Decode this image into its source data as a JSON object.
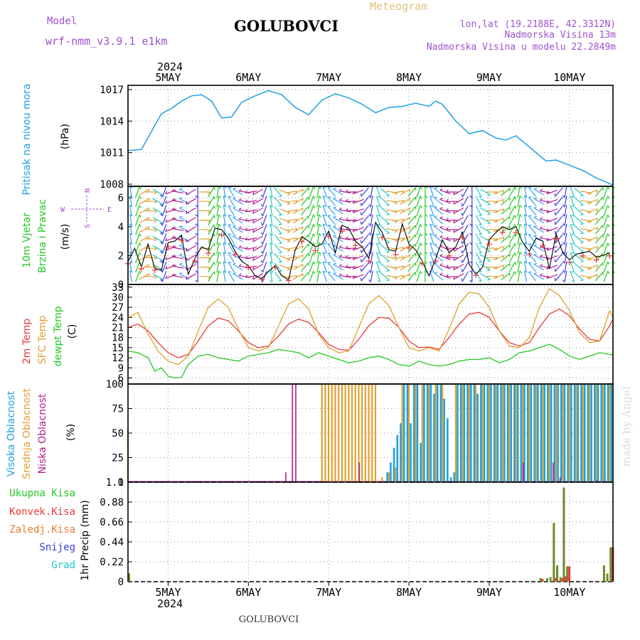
{
  "header": {
    "model_label": "Model",
    "model_name": "wrf-nmm_v3.9.1 e1km",
    "station": "GOLUBOVCI",
    "meteogram_label": "Meteogram",
    "lonlat": "lon,lat (19.2188E, 42.3312N)",
    "elevation": "Nadmorska Visina 13m",
    "model_elevation": "Nadmorska Visina u modelu 22.2849m",
    "footer_station": "GOLUBOVCI",
    "watermark": "made by Angel"
  },
  "time_axis": {
    "top_year": "2024",
    "bottom_year": "2024",
    "days": [
      "5MAY",
      "6MAY",
      "7MAY",
      "8MAY",
      "9MAY",
      "10MAY"
    ],
    "start_hour_offset": -12,
    "end_hour_offset": 133
  },
  "colors": {
    "pressure": "#1fa0e0",
    "t2m": "#e83a3a",
    "tsfc": "#e0a030",
    "dewpt": "#22c822",
    "high_cloud": "#1fa0e0",
    "mid_cloud": "#e0a030",
    "low_cloud": "#b0208c",
    "total_precip": "#22c822",
    "conv_precip": "#e83a3a",
    "frz_precip": "#f07830",
    "snow": "#3c3ce0",
    "grad": "#20c8c8",
    "label_purple": "#a050d0",
    "label_orange": "#e0c080"
  },
  "chart_data": [
    {
      "type": "line",
      "name": "pressure",
      "ylabel": [
        "Pritisak na nivou mora",
        "(hPa)"
      ],
      "yticks": [
        1008,
        1011,
        1014,
        1017
      ],
      "ylim": [
        1007.8,
        1017.4
      ],
      "grid": true,
      "series": [
        {
          "name": "Pritisak na nivou mora",
          "x": [
            -12,
            -8,
            -5,
            -2,
            1,
            4,
            7,
            10,
            13,
            16,
            19,
            22,
            26,
            30,
            34,
            38,
            42,
            46,
            50,
            54,
            58,
            62,
            66,
            70,
            74,
            78,
            80,
            82,
            86,
            90,
            94,
            98,
            101,
            104,
            107,
            110,
            113,
            116,
            120,
            124,
            128,
            131,
            133
          ],
          "values": [
            1011.2,
            1011.3,
            1013.0,
            1014.7,
            1015.2,
            1015.9,
            1016.4,
            1016.5,
            1015.9,
            1014.3,
            1014.4,
            1015.8,
            1016.4,
            1016.9,
            1016.5,
            1015.3,
            1014.6,
            1016.0,
            1016.6,
            1016.2,
            1015.6,
            1014.8,
            1015.3,
            1015.4,
            1015.7,
            1015.4,
            1015.9,
            1015.6,
            1014.0,
            1012.8,
            1013.1,
            1012.4,
            1012.2,
            1012.6,
            1011.8,
            1011.0,
            1010.2,
            1010.3,
            1009.8,
            1009.3,
            1008.6,
            1008.2,
            1007.9
          ]
        }
      ]
    },
    {
      "type": "line",
      "name": "wind",
      "ylabel": [
        "10m Vjetar",
        "Brzina i Pravac",
        "(m/s)"
      ],
      "compass": {
        "n": "N",
        "s": "S",
        "w": "W",
        "e": "E"
      },
      "yticks": [
        0,
        2,
        4,
        6
      ],
      "ylim": [
        0,
        6.8
      ],
      "grid": true,
      "series": [
        {
          "name": "10m Vjetar brzina",
          "x": [
            -12,
            -10,
            -8,
            -6,
            -4,
            -2,
            0,
            2,
            4,
            6,
            8,
            10,
            12,
            14,
            16,
            18,
            20,
            22,
            24,
            26,
            28,
            30,
            32,
            34,
            36,
            38,
            40,
            42,
            44,
            46,
            48,
            50,
            52,
            54,
            56,
            58,
            60,
            62,
            64,
            66,
            68,
            70,
            72,
            74,
            76,
            78,
            80,
            82,
            84,
            86,
            88,
            90,
            92,
            94,
            96,
            98,
            100,
            102,
            104,
            106,
            108,
            110,
            112,
            114,
            116,
            118,
            120,
            122,
            124,
            126,
            128,
            130,
            132
          ],
          "values": [
            1.6,
            2.5,
            1.2,
            2.8,
            1.1,
            1.0,
            2.9,
            3.0,
            3.4,
            0.7,
            1.8,
            2.6,
            2.4,
            3.9,
            3.8,
            3.2,
            2.3,
            1.6,
            1.3,
            0.6,
            0.4,
            0.9,
            1.3,
            0.6,
            0.3,
            2.4,
            3.3,
            3.0,
            2.6,
            2.8,
            3.7,
            2.2,
            4.1,
            3.9,
            3.0,
            2.6,
            1.8,
            4.3,
            3.6,
            2.4,
            2.3,
            4.2,
            2.8,
            2.4,
            1.6,
            0.6,
            1.8,
            3.1,
            2.2,
            2.6,
            3.6,
            1.4,
            0.7,
            1.2,
            3.1,
            3.6,
            4.0,
            3.8,
            4.0,
            2.9,
            2.3,
            3.2,
            3.0,
            1.1,
            3.5,
            2.2,
            1.7,
            2.1,
            2.2,
            2.3,
            1.9,
            2.0,
            2.2
          ],
          "direction_deg": [
            350,
            20,
            60,
            90,
            120,
            200,
            250,
            280,
            300,
            240,
            180,
            90,
            30,
            10,
            350,
            330,
            300,
            280,
            260,
            240,
            200,
            170,
            140,
            110,
            80,
            60,
            40,
            20,
            10,
            340,
            320,
            300,
            280,
            270,
            250,
            220,
            190,
            160,
            130,
            100,
            80,
            60,
            40,
            20,
            0,
            340,
            310,
            290,
            270,
            240,
            210,
            180,
            150,
            120,
            90,
            70,
            50,
            30,
            10,
            350,
            320,
            300,
            280,
            250,
            220,
            190,
            160,
            130,
            100,
            70,
            40,
            20,
            0
          ]
        }
      ]
    },
    {
      "type": "line",
      "name": "temperature",
      "ylabel": [
        "2m Temp",
        "SFC Temp",
        "dewpt Temp",
        "(C)"
      ],
      "yticks": [
        6,
        9,
        12,
        15,
        18,
        21,
        24,
        27,
        30,
        33
      ],
      "ylim": [
        4.2,
        33.8
      ],
      "grid": true,
      "series": [
        {
          "name": "2m Temp",
          "x": [
            -12,
            -9,
            -6,
            -3,
            0,
            3,
            6,
            9,
            12,
            15,
            18,
            21,
            24,
            27,
            30,
            33,
            36,
            39,
            42,
            45,
            48,
            51,
            54,
            57,
            60,
            63,
            66,
            69,
            72,
            75,
            78,
            81,
            84,
            87,
            90,
            93,
            96,
            99,
            102,
            105,
            108,
            111,
            114,
            117,
            120,
            123,
            126,
            129,
            132,
            133
          ],
          "values": [
            21.0,
            22.0,
            20.0,
            16.5,
            13.5,
            12.0,
            13.0,
            17.0,
            21.5,
            23.8,
            23.0,
            20.0,
            16.5,
            15.0,
            15.5,
            18.5,
            22.0,
            23.5,
            22.5,
            19.5,
            16.0,
            14.5,
            14.2,
            17.5,
            21.5,
            24.0,
            23.8,
            21.0,
            17.0,
            15.0,
            15.2,
            14.5,
            18.0,
            22.0,
            25.0,
            25.5,
            24.0,
            20.0,
            16.5,
            15.5,
            16.5,
            21.0,
            25.0,
            26.5,
            24.5,
            20.5,
            17.5,
            17.0,
            21.5,
            23.5
          ]
        },
        {
          "name": "SFC Temp",
          "x": [
            -12,
            -9,
            -6,
            -3,
            0,
            3,
            6,
            9,
            12,
            15,
            18,
            21,
            24,
            27,
            30,
            33,
            36,
            39,
            42,
            45,
            48,
            51,
            54,
            57,
            60,
            63,
            66,
            69,
            72,
            75,
            78,
            81,
            84,
            87,
            90,
            93,
            96,
            99,
            102,
            105,
            108,
            111,
            114,
            117,
            120,
            123,
            126,
            129,
            132,
            133
          ],
          "values": [
            24.0,
            25.5,
            19.0,
            14.0,
            11.0,
            10.0,
            12.5,
            20.0,
            27.0,
            29.5,
            27.0,
            20.5,
            15.0,
            14.0,
            15.0,
            21.5,
            28.0,
            29.5,
            26.5,
            19.0,
            15.0,
            13.5,
            14.0,
            21.0,
            28.0,
            30.5,
            27.5,
            21.0,
            15.0,
            14.0,
            15.0,
            14.0,
            20.5,
            28.0,
            31.5,
            31.0,
            27.0,
            20.0,
            15.5,
            15.0,
            18.0,
            27.0,
            32.5,
            30.5,
            26.0,
            19.5,
            16.5,
            17.0,
            26.0,
            24.0
          ]
        },
        {
          "name": "dewpt Temp",
          "x": [
            -12,
            -9,
            -6,
            -4,
            -2,
            0,
            2,
            4,
            6,
            9,
            12,
            15,
            18,
            21,
            24,
            27,
            30,
            33,
            36,
            39,
            42,
            45,
            48,
            51,
            54,
            57,
            60,
            63,
            66,
            69,
            72,
            75,
            78,
            81,
            84,
            87,
            90,
            93,
            96,
            99,
            102,
            105,
            108,
            111,
            114,
            117,
            120,
            123,
            126,
            129,
            132,
            133
          ],
          "values": [
            14.0,
            13.5,
            12.0,
            8.0,
            9.0,
            6.5,
            6.0,
            6.2,
            10.0,
            12.5,
            13.0,
            12.0,
            11.5,
            11.0,
            12.5,
            13.0,
            13.5,
            14.5,
            14.0,
            13.5,
            12.0,
            13.5,
            12.5,
            11.5,
            10.5,
            11.0,
            12.0,
            12.5,
            11.5,
            10.0,
            9.5,
            11.0,
            10.0,
            9.5,
            10.0,
            11.0,
            11.5,
            11.5,
            12.0,
            10.5,
            11.5,
            13.5,
            14.0,
            15.0,
            16.0,
            14.5,
            12.5,
            11.5,
            12.5,
            13.5,
            13.0,
            12.8
          ]
        }
      ]
    },
    {
      "type": "bar",
      "name": "cloud_cover",
      "ylabel": [
        "Visoka Oblacnost",
        "Srednja Oblacnost",
        "Niska Oblacnost",
        "(%)"
      ],
      "yticks": [
        0,
        25,
        50,
        75,
        100
      ],
      "ylim": [
        0,
        100
      ],
      "grid": true,
      "series": [
        {
          "name": "Visoka Oblacnost",
          "x": [
            65,
            66,
            67,
            68,
            69,
            70,
            71,
            72,
            73,
            74,
            75,
            76,
            77,
            78,
            79,
            80,
            81,
            82,
            83,
            84,
            85,
            86,
            87,
            88,
            89,
            90,
            91,
            92,
            93,
            94,
            95,
            96,
            97,
            98,
            99,
            100,
            101,
            102,
            103,
            104,
            105,
            106,
            107,
            108,
            109,
            110,
            111,
            112,
            113,
            114,
            115,
            116,
            117,
            118,
            119,
            120,
            121,
            122,
            123,
            124,
            125,
            126,
            127,
            128,
            129,
            130,
            131,
            132
          ],
          "values": [
            10,
            20,
            35,
            48,
            60,
            100,
            100,
            60,
            100,
            100,
            40,
            100,
            100,
            100,
            90,
            100,
            100,
            85,
            65,
            5,
            10,
            100,
            100,
            100,
            100,
            100,
            100,
            90,
            100,
            100,
            100,
            100,
            100,
            100,
            100,
            100,
            100,
            100,
            100,
            100,
            100,
            100,
            100,
            100,
            100,
            100,
            100,
            100,
            100,
            100,
            100,
            100,
            100,
            100,
            100,
            100,
            100,
            100,
            100,
            100,
            100,
            100,
            100,
            100,
            100,
            100,
            100,
            100
          ]
        },
        {
          "name": "Srednja Oblacnost",
          "x": [
            -12,
            46,
            47,
            48,
            49,
            50,
            51,
            52,
            53,
            54,
            55,
            56,
            57,
            58,
            59,
            60,
            61,
            62,
            64,
            66,
            68,
            70,
            72,
            74,
            76,
            78,
            80,
            82,
            86,
            88,
            90,
            92,
            94,
            96,
            98,
            100,
            102,
            104,
            106,
            108,
            110,
            112,
            114,
            116,
            118,
            120,
            122,
            124,
            126,
            128,
            130,
            132
          ],
          "values": [
            55,
            100,
            100,
            100,
            100,
            100,
            100,
            100,
            100,
            100,
            100,
            100,
            100,
            100,
            100,
            100,
            100,
            100,
            5,
            10,
            15,
            100,
            100,
            100,
            100,
            100,
            100,
            100,
            100,
            100,
            100,
            100,
            100,
            100,
            100,
            100,
            100,
            100,
            100,
            100,
            100,
            100,
            100,
            100,
            100,
            100,
            100,
            100,
            100,
            100,
            100,
            100
          ]
        },
        {
          "name": "Niska Oblacnost",
          "x": [
            35,
            37,
            38,
            57,
            106,
            115,
            117,
            128
          ],
          "values": [
            10,
            100,
            100,
            20,
            20,
            20,
            5,
            2
          ]
        }
      ]
    },
    {
      "type": "bar",
      "name": "precipitation",
      "ylabel": [
        "1hr Precip (mm)"
      ],
      "legend": [
        "Ukupna Kisa",
        "Konvek.Kisa",
        "Zaledj.Kisa",
        "Snijeg",
        "Grad"
      ],
      "yticks": [
        0,
        0.22,
        0.44,
        0.66,
        0.88,
        1.1
      ],
      "ylim": [
        0,
        1.1
      ],
      "grid": true,
      "series": [
        {
          "name": "Ukupna Kisa",
          "x": [
            -12,
            111,
            113,
            114,
            115,
            116,
            117,
            118,
            119,
            120,
            130,
            131,
            132
          ],
          "values": [
            0.09,
            0.04,
            0.04,
            0.05,
            0.65,
            0.18,
            0.05,
            1.04,
            0.17,
            0.0,
            0.18,
            0.09,
            0.38
          ]
        },
        {
          "name": "Konvek.Kisa",
          "x": [
            111,
            115,
            117,
            118,
            119,
            132
          ],
          "values": [
            0.03,
            0.04,
            0.04,
            0.06,
            0.17,
            0.38
          ]
        }
      ]
    }
  ]
}
